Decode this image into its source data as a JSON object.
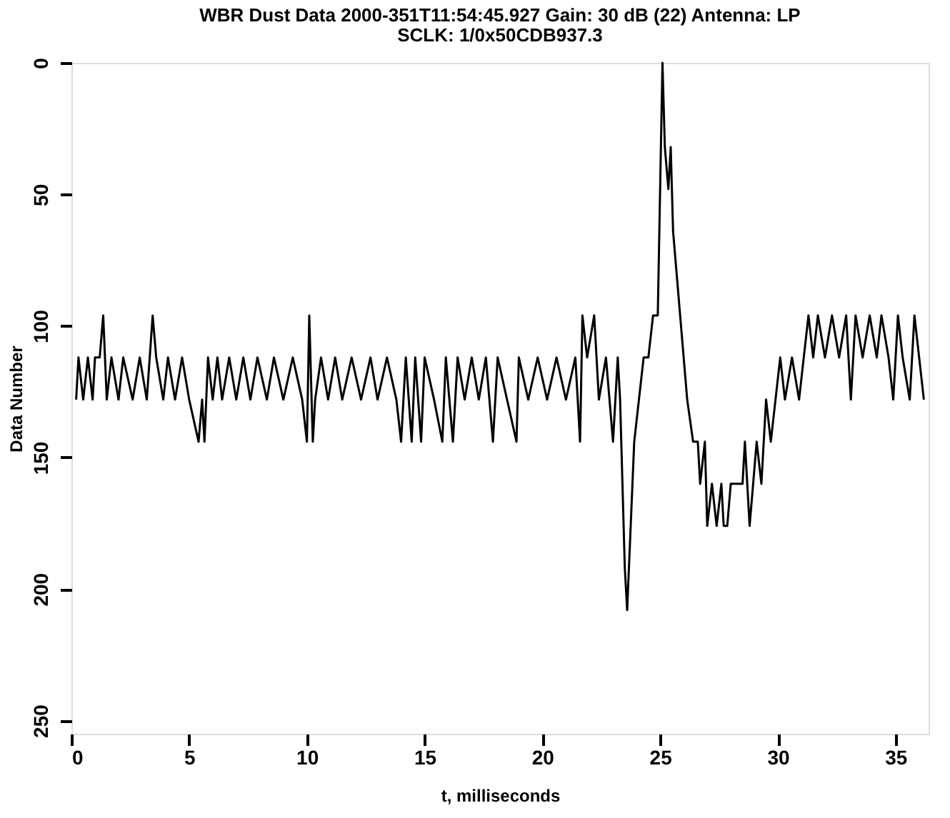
{
  "chart_data": {
    "type": "line",
    "title": "WBR Dust Data 2000-351T11:54:45.927     Gain: 30 dB (22)     Antenna: LP",
    "subtitle": "SCLK: 1/0x50CDB937.3",
    "xlabel": "t, milliseconds",
    "ylabel": "Data Number",
    "xlim": [
      0,
      36.4
    ],
    "xticks": [
      0,
      5,
      10,
      15,
      20,
      25,
      30,
      35
    ],
    "ylim": [
      255,
      0
    ],
    "yticks": [
      0,
      50,
      100,
      150,
      200,
      250
    ],
    "grid": false,
    "legend": false,
    "marker": "none",
    "line_style": "solid",
    "series": [
      {
        "color": "#000000",
        "x": [
          0.2,
          0.3,
          0.5,
          0.7,
          0.9,
          1.0,
          1.2,
          1.35,
          1.5,
          1.7,
          2.0,
          2.2,
          2.6,
          2.9,
          3.2,
          3.45,
          3.6,
          3.9,
          4.1,
          4.4,
          4.7,
          5.0,
          5.4,
          5.55,
          5.65,
          5.8,
          6.0,
          6.2,
          6.4,
          6.7,
          7.0,
          7.3,
          7.6,
          7.9,
          8.3,
          8.6,
          9.0,
          9.4,
          9.8,
          10.0,
          10.1,
          10.25,
          10.35,
          10.6,
          10.9,
          11.2,
          11.5,
          11.9,
          12.3,
          12.7,
          13.0,
          13.4,
          13.8,
          14.0,
          14.2,
          14.45,
          14.6,
          14.85,
          15.0,
          15.4,
          15.75,
          15.9,
          16.2,
          16.4,
          16.7,
          17.0,
          17.3,
          17.6,
          17.9,
          18.1,
          18.5,
          18.9,
          19.0,
          19.4,
          19.8,
          20.2,
          20.6,
          21.0,
          21.4,
          21.6,
          21.7,
          21.9,
          22.2,
          22.4,
          22.7,
          23.0,
          23.2,
          23.3,
          23.5,
          23.6,
          23.75,
          23.9,
          24.1,
          24.3,
          24.5,
          24.7,
          24.9,
          25.0,
          25.1,
          25.2,
          25.35,
          25.45,
          25.55,
          25.7,
          25.85,
          26.0,
          26.15,
          26.4,
          26.6,
          26.7,
          26.9,
          27.0,
          27.2,
          27.4,
          27.6,
          27.7,
          27.85,
          28.0,
          28.5,
          28.6,
          28.8,
          28.95,
          29.1,
          29.3,
          29.5,
          29.7,
          29.9,
          30.1,
          30.3,
          30.6,
          30.9,
          31.1,
          31.3,
          31.5,
          31.7,
          32.0,
          32.3,
          32.6,
          32.9,
          33.1,
          33.3,
          33.6,
          33.9,
          34.2,
          34.4,
          34.7,
          34.9,
          35.1,
          35.3,
          35.6,
          35.8,
          36.0,
          36.2
        ],
        "values": [
          128,
          112,
          128,
          112,
          128,
          112,
          112,
          96,
          128,
          112,
          128,
          112,
          128,
          112,
          128,
          96,
          112,
          128,
          112,
          128,
          112,
          128,
          144,
          128,
          144,
          112,
          128,
          112,
          128,
          112,
          128,
          112,
          128,
          112,
          128,
          112,
          128,
          112,
          128,
          144,
          96,
          144,
          128,
          112,
          128,
          112,
          128,
          112,
          128,
          112,
          128,
          112,
          128,
          144,
          112,
          144,
          112,
          144,
          112,
          128,
          144,
          112,
          144,
          112,
          128,
          112,
          128,
          112,
          144,
          112,
          128,
          144,
          112,
          128,
          112,
          128,
          112,
          128,
          112,
          144,
          96,
          112,
          96,
          128,
          112,
          144,
          112,
          128,
          192,
          208,
          176,
          144,
          128,
          112,
          112,
          96,
          96,
          48,
          0,
          32,
          48,
          32,
          64,
          80,
          96,
          112,
          128,
          144,
          144,
          160,
          144,
          176,
          160,
          176,
          160,
          176,
          176,
          160,
          160,
          144,
          176,
          160,
          144,
          160,
          128,
          144,
          128,
          112,
          128,
          112,
          128,
          112,
          96,
          112,
          96,
          112,
          96,
          112,
          96,
          128,
          96,
          112,
          96,
          112,
          96,
          112,
          128,
          96,
          112,
          128,
          96,
          112,
          128
        ]
      }
    ]
  }
}
